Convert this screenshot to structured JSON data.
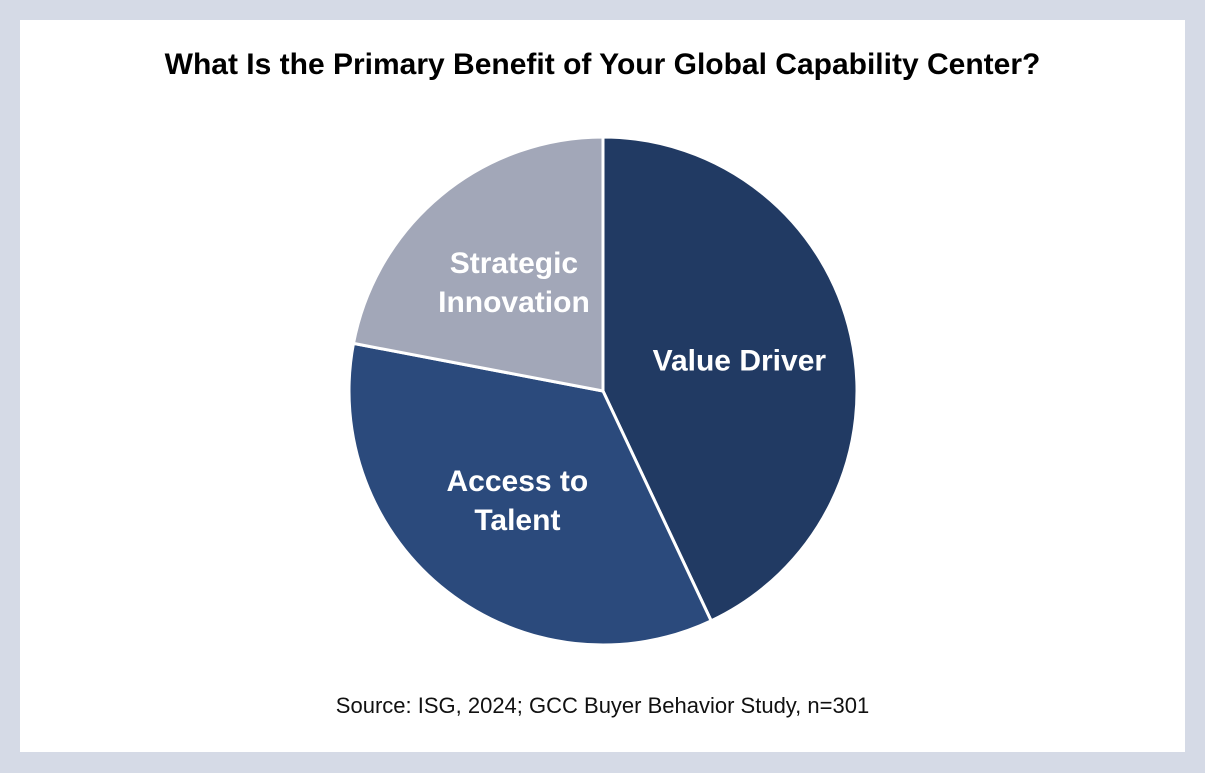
{
  "chart_data": {
    "type": "pie",
    "title": "What Is the Primary Benefit of Your Global Capability Center?",
    "categories": [
      "Value Driver",
      "Access to Talent",
      "Strategic Innovation"
    ],
    "values": [
      43,
      35,
      22
    ],
    "colors": [
      "#213a63",
      "#2b4a7c",
      "#a2a7b8"
    ],
    "source": "Source: ISG, 2024; GCC Buyer Behavior Study, n=301"
  }
}
